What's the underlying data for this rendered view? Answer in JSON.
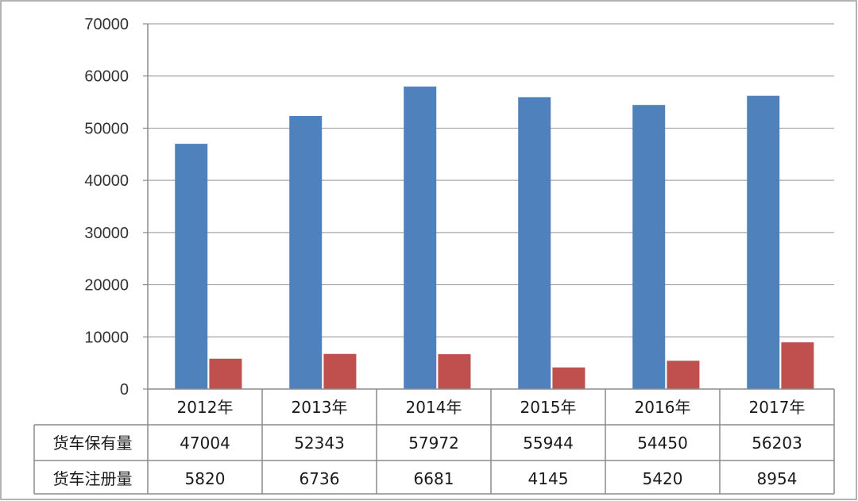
{
  "chart_data": {
    "type": "bar",
    "categories": [
      "2012年",
      "2013年",
      "2014年",
      "2015年",
      "2016年",
      "2017年"
    ],
    "series": [
      {
        "name": "货车保有量",
        "values": [
          47004,
          52343,
          57972,
          55944,
          54450,
          56203
        ]
      },
      {
        "name": "货车注册量",
        "values": [
          5820,
          6736,
          6681,
          4145,
          5420,
          8954
        ]
      }
    ],
    "yticks": [
      "0",
      "10000",
      "20000",
      "30000",
      "40000",
      "50000",
      "60000",
      "70000"
    ],
    "ylim": [
      0,
      70000
    ],
    "grid": true,
    "legend": "data-table",
    "table_rows": [
      {
        "label": "货车保有量",
        "values": [
          "47004",
          "52343",
          "57972",
          "55944",
          "54450",
          "56203"
        ]
      },
      {
        "label": "货车注册量",
        "values": [
          "5820",
          "6736",
          "6681",
          "4145",
          "5420",
          "8954"
        ]
      }
    ],
    "colors": {
      "series1": "#4F81BD",
      "series2": "#C0504D",
      "grid": "#A6A6A6",
      "frame": "#8C8C8C"
    }
  }
}
